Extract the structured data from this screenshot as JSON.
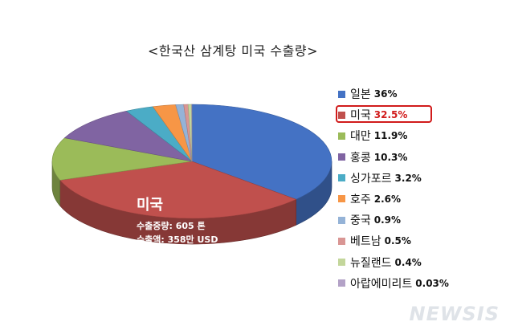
{
  "chart_data": {
    "type": "pie",
    "title": "<한국산 삼계탕 미국 수출량>",
    "categories": [
      "일본",
      "미국",
      "대만",
      "홍콩",
      "싱가포르",
      "호주",
      "중국",
      "베트남",
      "뉴질랜드",
      "아랍에미리트"
    ],
    "values": [
      36,
      32.5,
      11.9,
      10.3,
      3.2,
      2.6,
      0.9,
      0.5,
      0.4,
      0.03
    ],
    "value_labels": [
      "36%",
      "32.5%",
      "11.9%",
      "10.3%",
      "3.2%",
      "2.6%",
      "0.9%",
      "0.5%",
      "0.4%",
      "0.03%"
    ],
    "colors": [
      "#4472c4",
      "#c0504d",
      "#9bbb59",
      "#8064a2",
      "#4bacc6",
      "#f79646",
      "#95b3d7",
      "#d99694",
      "#c3d69b",
      "#b3a2c7"
    ],
    "highlight_index": 1,
    "legend_position": "right",
    "annotation": {
      "title": "미국",
      "line1": "수출중량: 605 톤",
      "line2": "수출액:  358만 USD"
    }
  },
  "watermark": "NEWSIS"
}
